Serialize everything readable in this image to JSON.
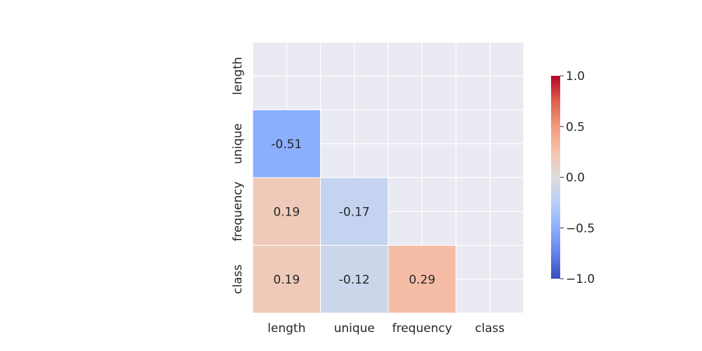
{
  "chart_data": {
    "type": "heatmap",
    "title": "",
    "xlabel": "",
    "ylabel": "",
    "variables": [
      "length",
      "unique",
      "frequency",
      "class"
    ],
    "x_tick_labels": [
      "length",
      "unique",
      "frequency",
      "class"
    ],
    "y_tick_labels": [
      "length",
      "unique",
      "frequency",
      "class"
    ],
    "mask": "upper-triangle-including-diagonal",
    "cells": [
      {
        "row": "unique",
        "col": "length",
        "value": -0.51,
        "label": "-0.51"
      },
      {
        "row": "frequency",
        "col": "length",
        "value": 0.19,
        "label": "0.19"
      },
      {
        "row": "frequency",
        "col": "unique",
        "value": -0.17,
        "label": "-0.17"
      },
      {
        "row": "class",
        "col": "length",
        "value": 0.19,
        "label": "0.19"
      },
      {
        "row": "class",
        "col": "unique",
        "value": -0.12,
        "label": "-0.12"
      },
      {
        "row": "class",
        "col": "frequency",
        "value": 0.29,
        "label": "0.29"
      }
    ],
    "colorbar": {
      "colormap": "coolwarm",
      "range": [
        -1.0,
        1.0
      ],
      "ticks": [
        1.0,
        0.5,
        0.0,
        -0.5,
        -1.0
      ],
      "tick_labels": [
        "1.0",
        "0.5",
        "0.0",
        "−0.5",
        "−1.0"
      ],
      "placement": "right"
    },
    "grid": true,
    "colors": {
      "axes_background": "#eaeaf2",
      "grid": "#ffffff",
      "text": "#262626"
    }
  }
}
